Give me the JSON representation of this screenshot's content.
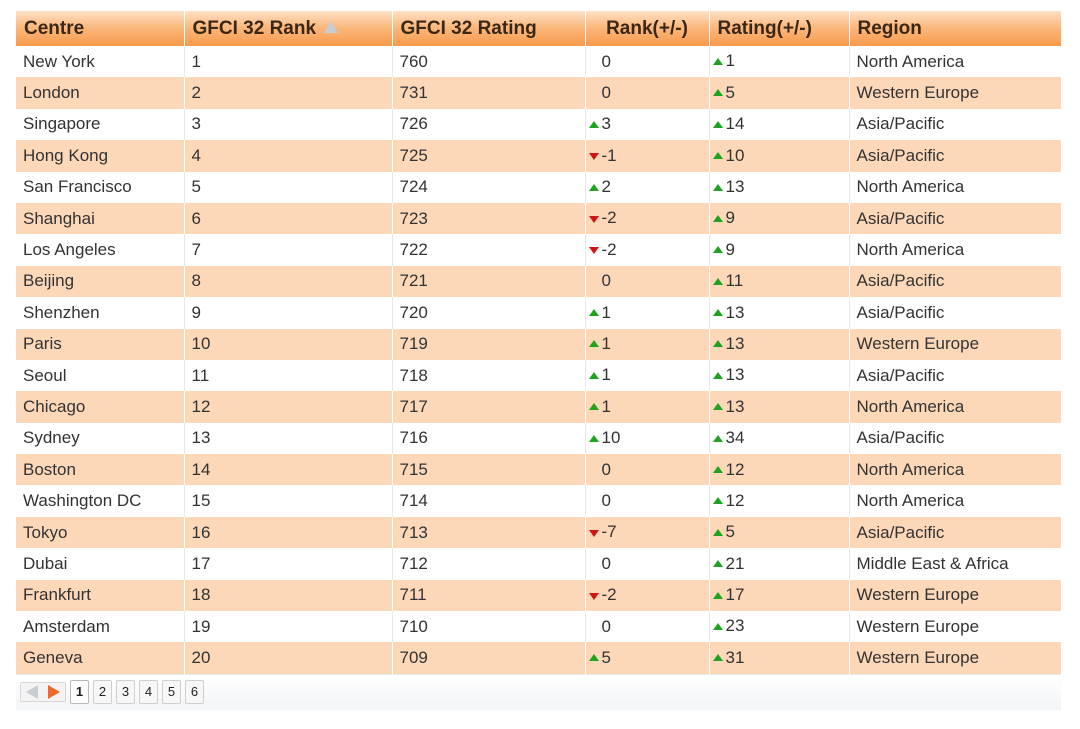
{
  "columns": {
    "centre": "Centre",
    "rank": "GFCI 32 Rank",
    "rating": "GFCI 32 Rating",
    "rank_change": "Rank(+/-)",
    "rating_change": "Rating(+/-)",
    "region": "Region"
  },
  "sort_icon": "sort-ascending-icon",
  "colors": {
    "header_accent": "#f89a4c",
    "row_stripe": "#fcd7b8",
    "up": "#1fa31f",
    "down": "#d01414",
    "pager_next": "#f0692a"
  },
  "rows": [
    {
      "centre": "New York",
      "rank": "1",
      "rating": "760",
      "rank_change": "0",
      "rank_dir": "none",
      "rating_change": "1",
      "rating_dir": "up",
      "region": "North America"
    },
    {
      "centre": "London",
      "rank": "2",
      "rating": "731",
      "rank_change": "0",
      "rank_dir": "none",
      "rating_change": "5",
      "rating_dir": "up",
      "region": "Western Europe"
    },
    {
      "centre": "Singapore",
      "rank": "3",
      "rating": "726",
      "rank_change": "3",
      "rank_dir": "up",
      "rating_change": "14",
      "rating_dir": "up",
      "region": "Asia/Pacific"
    },
    {
      "centre": "Hong Kong",
      "rank": "4",
      "rating": "725",
      "rank_change": "-1",
      "rank_dir": "down",
      "rating_change": "10",
      "rating_dir": "up",
      "region": "Asia/Pacific"
    },
    {
      "centre": "San Francisco",
      "rank": "5",
      "rating": "724",
      "rank_change": "2",
      "rank_dir": "up",
      "rating_change": "13",
      "rating_dir": "up",
      "region": "North America"
    },
    {
      "centre": "Shanghai",
      "rank": "6",
      "rating": "723",
      "rank_change": "-2",
      "rank_dir": "down",
      "rating_change": "9",
      "rating_dir": "up",
      "region": "Asia/Pacific"
    },
    {
      "centre": "Los Angeles",
      "rank": "7",
      "rating": "722",
      "rank_change": "-2",
      "rank_dir": "down",
      "rating_change": "9",
      "rating_dir": "up",
      "region": "North America"
    },
    {
      "centre": "Beijing",
      "rank": "8",
      "rating": "721",
      "rank_change": "0",
      "rank_dir": "none",
      "rating_change": "11",
      "rating_dir": "up",
      "region": "Asia/Pacific"
    },
    {
      "centre": "Shenzhen",
      "rank": "9",
      "rating": "720",
      "rank_change": "1",
      "rank_dir": "up",
      "rating_change": "13",
      "rating_dir": "up",
      "region": "Asia/Pacific"
    },
    {
      "centre": "Paris",
      "rank": "10",
      "rating": "719",
      "rank_change": "1",
      "rank_dir": "up",
      "rating_change": "13",
      "rating_dir": "up",
      "region": "Western Europe"
    },
    {
      "centre": "Seoul",
      "rank": "11",
      "rating": "718",
      "rank_change": "1",
      "rank_dir": "up",
      "rating_change": "13",
      "rating_dir": "up",
      "region": "Asia/Pacific"
    },
    {
      "centre": "Chicago",
      "rank": "12",
      "rating": "717",
      "rank_change": "1",
      "rank_dir": "up",
      "rating_change": "13",
      "rating_dir": "up",
      "region": "North America"
    },
    {
      "centre": "Sydney",
      "rank": "13",
      "rating": "716",
      "rank_change": "10",
      "rank_dir": "up",
      "rating_change": "34",
      "rating_dir": "up",
      "region": "Asia/Pacific"
    },
    {
      "centre": "Boston",
      "rank": "14",
      "rating": "715",
      "rank_change": "0",
      "rank_dir": "none",
      "rating_change": "12",
      "rating_dir": "up",
      "region": "North America"
    },
    {
      "centre": "Washington DC",
      "rank": "15",
      "rating": "714",
      "rank_change": "0",
      "rank_dir": "none",
      "rating_change": "12",
      "rating_dir": "up",
      "region": "North America"
    },
    {
      "centre": "Tokyo",
      "rank": "16",
      "rating": "713",
      "rank_change": "-7",
      "rank_dir": "down",
      "rating_change": "5",
      "rating_dir": "up",
      "region": "Asia/Pacific"
    },
    {
      "centre": "Dubai",
      "rank": "17",
      "rating": "712",
      "rank_change": "0",
      "rank_dir": "none",
      "rating_change": "21",
      "rating_dir": "up",
      "region": "Middle East & Africa"
    },
    {
      "centre": "Frankfurt",
      "rank": "18",
      "rating": "711",
      "rank_change": "-2",
      "rank_dir": "down",
      "rating_change": "17",
      "rating_dir": "up",
      "region": "Western Europe"
    },
    {
      "centre": "Amsterdam",
      "rank": "19",
      "rating": "710",
      "rank_change": "0",
      "rank_dir": "none",
      "rating_change": "23",
      "rating_dir": "up",
      "region": "Western Europe"
    },
    {
      "centre": "Geneva",
      "rank": "20",
      "rating": "709",
      "rank_change": "5",
      "rank_dir": "up",
      "rating_change": "31",
      "rating_dir": "up",
      "region": "Western Europe"
    }
  ],
  "pagination": {
    "prev_icon": "arrow-left-icon",
    "next_icon": "arrow-right-icon",
    "pages": [
      "1",
      "2",
      "3",
      "4",
      "5",
      "6"
    ],
    "current": "1"
  }
}
